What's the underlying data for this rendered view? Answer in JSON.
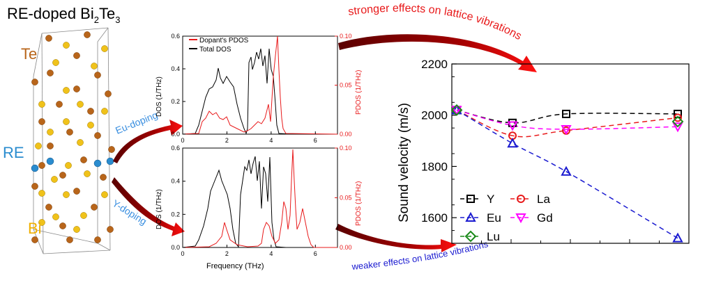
{
  "crystal": {
    "title": "RE-doped Bi",
    "title_sub1": "2",
    "title_mid": "Te",
    "title_sub2": "3",
    "label_te": "Te",
    "label_re": "RE",
    "label_bi": "Bi",
    "colors": {
      "te": "#b8651a",
      "bi": "#f0c21a",
      "re": "#2a8ccf"
    }
  },
  "arrows": {
    "eu_doping": "Eu-doping",
    "y_doping": "Y-doping",
    "stronger": "stronger effects on lattice vibrations",
    "weaker": "weaker effects on lattice vibrations",
    "colors": {
      "dark_red": "#8b0000",
      "red": "#e8191a",
      "blue": "#1a1ad0",
      "lightblue": "#3a8fe0"
    }
  },
  "dos_panel": {
    "legend": [
      "Dopant's PDOS",
      "Total DOS"
    ],
    "ylabel_left": "DOS (1/THz)",
    "ylabel_right": "PDOS (1/THz)",
    "xlabel": "Frequency (THz)",
    "x_ticks": [
      "0",
      "2",
      "4",
      "6"
    ],
    "left_ticks": [
      "0.0",
      "0.2",
      "0.4",
      "0.6"
    ],
    "right_ticks_top": [
      "0.00",
      "0.05",
      "0.10"
    ],
    "right_ticks_bottom": [
      "0.00",
      "0.05",
      "0.10"
    ]
  },
  "chart_data": {
    "type": "line",
    "ylabel": "Sound velocity (m/s)",
    "ylim": [
      1500,
      2200
    ],
    "y_ticks": [
      "1600",
      "1800",
      "2000",
      "2200"
    ],
    "x_categories": 4,
    "series": [
      {
        "name": "Y",
        "color": "#000000",
        "marker": "square",
        "values": [
          2020,
          1970,
          2005,
          2005
        ]
      },
      {
        "name": "La",
        "color": "#e8191a",
        "marker": "circle",
        "values": [
          2020,
          1920,
          1940,
          1990
        ]
      },
      {
        "name": "Eu",
        "color": "#1a1ad0",
        "marker": "triangle-up",
        "values": [
          2020,
          1890,
          1780,
          1520
        ]
      },
      {
        "name": "Gd",
        "color": "#ff00ff",
        "marker": "triangle-down",
        "values": [
          2020,
          1960,
          1945,
          1955
        ]
      },
      {
        "name": "Lu",
        "color": "#1a8a1a",
        "marker": "diamond",
        "values": [
          2020,
          null,
          null,
          1975
        ]
      }
    ]
  }
}
